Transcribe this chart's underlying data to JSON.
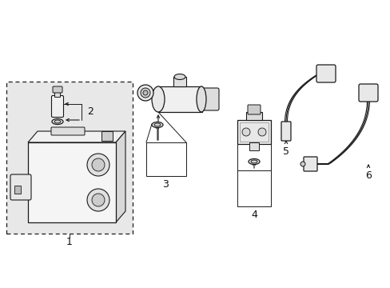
{
  "bg_color": "#ffffff",
  "line_color": "#1a1a1a",
  "box_bg": "#e8e8e8",
  "label_color": "#111111",
  "figsize": [
    4.89,
    3.6
  ],
  "dpi": 100,
  "xlim": [
    0,
    489
  ],
  "ylim": [
    0,
    360
  ]
}
